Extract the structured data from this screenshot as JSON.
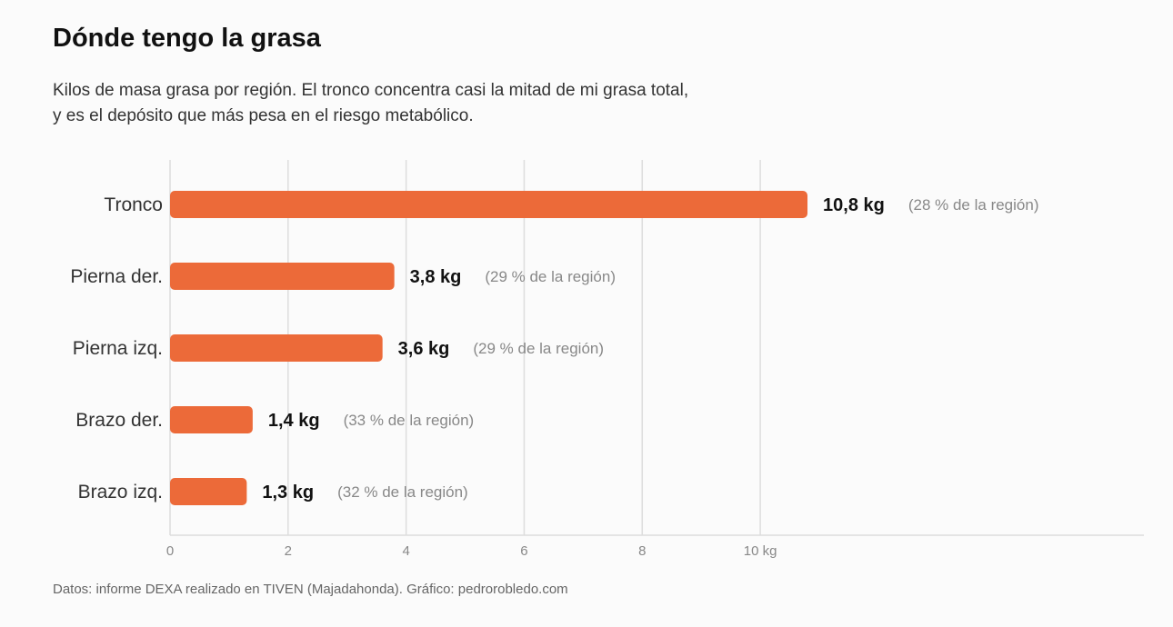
{
  "title": "Dónde tengo la grasa",
  "subtitle": [
    "Kilos de masa grasa por región. El tronco concentra casi la mitad de mi grasa total,",
    "y es el depósito que más pesa en el riesgo metabólico."
  ],
  "source": "Datos: informe DEXA realizado en TIVEN (Majadahonda). Gráfico: pedrorobledo.com",
  "colors": {
    "bar": "#ec6a39",
    "grid": "#dddddd",
    "value": "#111111",
    "note": "#888888",
    "label": "#333333"
  },
  "chart_data": {
    "type": "bar",
    "orientation": "horizontal",
    "categories": [
      "Tronco",
      "Pierna der.",
      "Pierna izq.",
      "Brazo der.",
      "Brazo izq."
    ],
    "values": [
      10.8,
      3.8,
      3.6,
      1.4,
      1.3
    ],
    "value_labels": [
      "10,8 kg",
      "3,8 kg",
      "3,6 kg",
      "1,4 kg",
      "1,3 kg"
    ],
    "annotations": [
      "(28 % de la región)",
      "(29 % de la región)",
      "(29 % de la región)",
      "(33 % de la región)",
      "(32 % de la región)"
    ],
    "xlim": [
      0,
      16.5
    ],
    "xticks": [
      0,
      2,
      4,
      6,
      8,
      10
    ],
    "xtick_labels": [
      "0",
      "2",
      "4",
      "6",
      "8",
      "10 kg"
    ],
    "grid": true
  }
}
